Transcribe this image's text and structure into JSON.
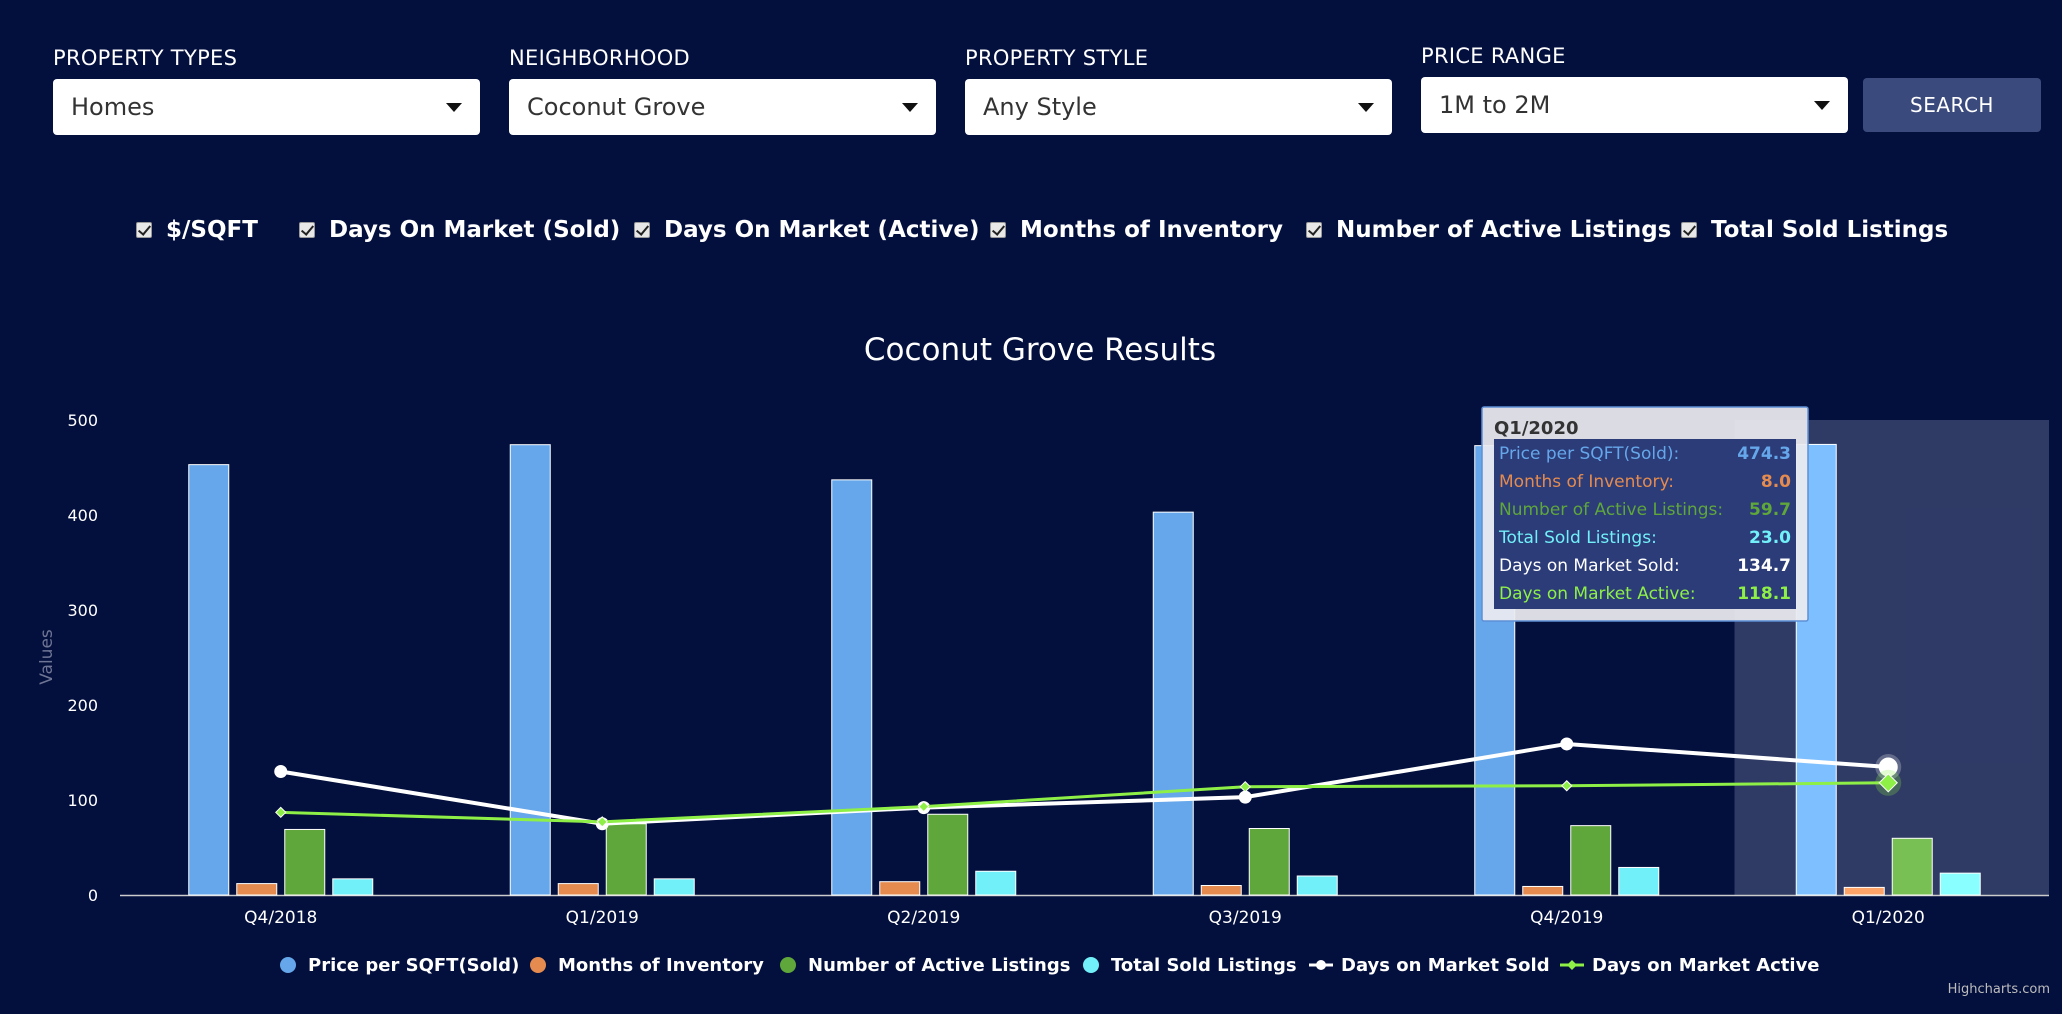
{
  "filters": {
    "property_types": {
      "label": "PROPERTY TYPES",
      "value": "Homes"
    },
    "neighborhood": {
      "label": "NEIGHBORHOOD",
      "value": "Coconut Grove"
    },
    "property_style": {
      "label": "PROPERTY STYLE",
      "value": "Any Style"
    },
    "price_range": {
      "label": "PRICE RANGE",
      "value": "1M to 2M"
    },
    "search_label": "SEARCH"
  },
  "toggles": [
    {
      "label": "$/SQFT",
      "checked": true
    },
    {
      "label": "Days On Market (Sold)",
      "checked": true
    },
    {
      "label": "Days On Market (Active)",
      "checked": true
    },
    {
      "label": "Months of Inventory",
      "checked": true
    },
    {
      "label": "Number of Active Listings",
      "checked": true
    },
    {
      "label": "Total Sold Listings",
      "checked": true
    }
  ],
  "credit": "Highcharts.com",
  "chart_data": {
    "type": "bar",
    "title": "Coconut Grove Results",
    "ylabel": "Values",
    "xlabel": "",
    "ylim": [
      0,
      500
    ],
    "yticks": [
      0,
      100,
      200,
      300,
      400,
      500
    ],
    "grid": false,
    "legend_position": "bottom",
    "categories": [
      "Q4/2018",
      "Q1/2019",
      "Q2/2019",
      "Q3/2019",
      "Q4/2019",
      "Q1/2020"
    ],
    "highlighted_category": "Q1/2020",
    "series": [
      {
        "name": "Price per SQFT(Sold)",
        "kind": "bar",
        "color": "#65a7ea",
        "values": [
          453,
          474,
          437,
          403,
          473,
          474.3
        ]
      },
      {
        "name": "Months of Inventory",
        "kind": "bar",
        "color": "#e58b4f",
        "values": [
          12,
          12,
          14,
          10,
          9,
          8.0
        ]
      },
      {
        "name": "Number of Active Listings",
        "kind": "bar",
        "color": "#5fa63b",
        "values": [
          69,
          75,
          85,
          70,
          73,
          59.7
        ]
      },
      {
        "name": "Total Sold Listings",
        "kind": "bar",
        "color": "#71f0f9",
        "values": [
          17,
          17,
          25,
          20,
          29,
          23.0
        ]
      },
      {
        "name": "Days on Market Sold",
        "kind": "line",
        "color": "#ffffff",
        "marker": "circle",
        "values": [
          130,
          75,
          92,
          103,
          159,
          134.7
        ]
      },
      {
        "name": "Days on Market Active",
        "kind": "line",
        "color": "#8ef047",
        "marker": "diamond",
        "values": [
          87,
          77,
          93,
          114,
          115,
          118.1
        ]
      }
    ],
    "tooltip": {
      "header": "Q1/2020",
      "rows": [
        {
          "label": "Price per SQFT(Sold):",
          "value": "474.3",
          "color": "#65a7ea"
        },
        {
          "label": "Months of Inventory:",
          "value": "8.0",
          "color": "#e58b4f"
        },
        {
          "label": "Number of Active Listings:",
          "value": "59.7",
          "color": "#5fa63b"
        },
        {
          "label": "Total Sold Listings:",
          "value": "23.0",
          "color": "#71f0f9"
        },
        {
          "label": "Days on Market Sold:",
          "value": "134.7",
          "color": "#ffffff"
        },
        {
          "label": "Days on Market Active:",
          "value": "118.1",
          "color": "#8ef047"
        }
      ]
    }
  }
}
